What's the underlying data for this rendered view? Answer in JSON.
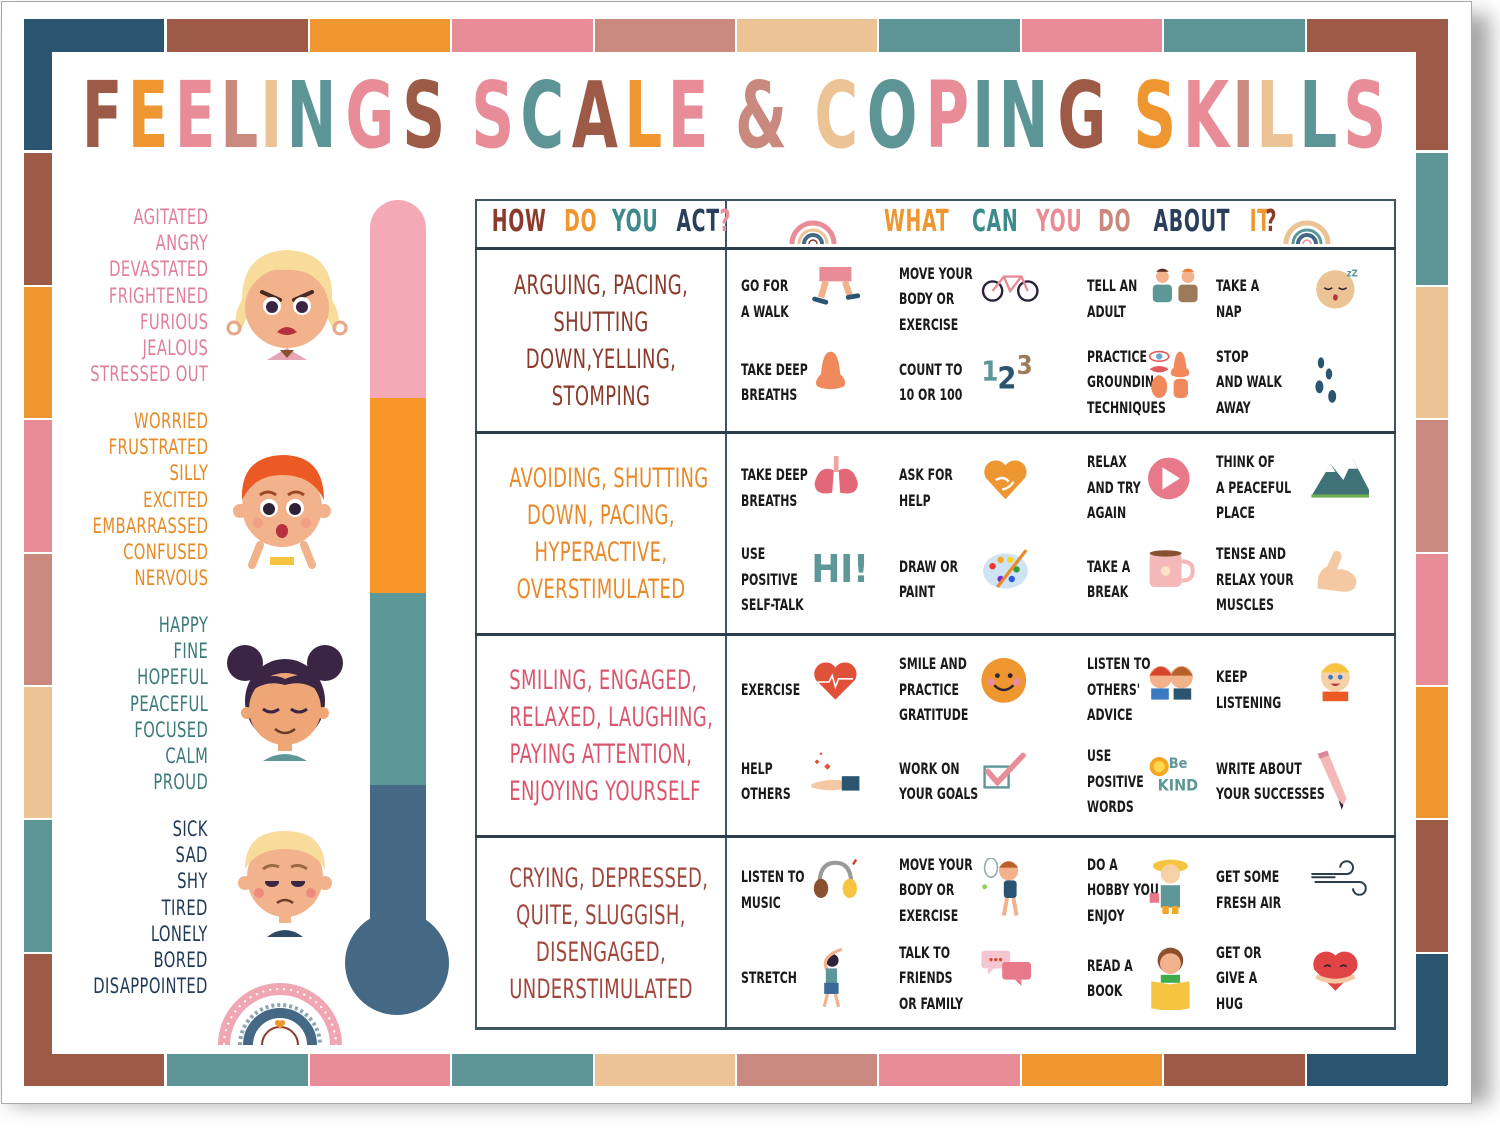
{
  "palette": {
    "navy": "#2a5470",
    "rust": "#9d5a47",
    "orange": "#ee9630",
    "pink": "#e88d98",
    "dusty_rose": "#c9897e",
    "peach": "#ecc394",
    "teal": "#5d9596",
    "thermo_pink": "#f3a9b6",
    "thermo_orange": "#f7972a",
    "thermo_teal": "#5e9797",
    "thermo_navy": "#456885"
  },
  "title": {
    "text": "FEELINGS SCALE & COPING SKILLS",
    "letters": [
      {
        "ch": "F",
        "color": "#9d5a47"
      },
      {
        "ch": "E",
        "color": "#ee9630"
      },
      {
        "ch": "E",
        "color": "#e88d98"
      },
      {
        "ch": "L",
        "color": "#c9897e"
      },
      {
        "ch": "I",
        "color": "#ecc394"
      },
      {
        "ch": "N",
        "color": "#5d9596"
      },
      {
        "ch": "G",
        "color": "#e88d98"
      },
      {
        "ch": "S",
        "color": "#9d5a47"
      },
      {
        "ch": " ",
        "color": "#fff"
      },
      {
        "ch": "S",
        "color": "#e88d98"
      },
      {
        "ch": "C",
        "color": "#5d9596"
      },
      {
        "ch": "A",
        "color": "#9d5a47"
      },
      {
        "ch": "L",
        "color": "#ee9630"
      },
      {
        "ch": "E",
        "color": "#e88d98"
      },
      {
        "ch": " ",
        "color": "#fff"
      },
      {
        "ch": "&",
        "color": "#c9897e"
      },
      {
        "ch": " ",
        "color": "#fff"
      },
      {
        "ch": "C",
        "color": "#ecc394"
      },
      {
        "ch": "O",
        "color": "#5d9596"
      },
      {
        "ch": "P",
        "color": "#e88d98"
      },
      {
        "ch": "I",
        "color": "#5d9596"
      },
      {
        "ch": "N",
        "color": "#5d9596"
      },
      {
        "ch": "G",
        "color": "#9d5a47"
      },
      {
        "ch": " ",
        "color": "#fff"
      },
      {
        "ch": "S",
        "color": "#ee9630"
      },
      {
        "ch": "K",
        "color": "#e88d98"
      },
      {
        "ch": "I",
        "color": "#c9897e"
      },
      {
        "ch": "L",
        "color": "#ecc394"
      },
      {
        "ch": "L",
        "color": "#5d9596"
      },
      {
        "ch": "S",
        "color": "#e88d98"
      }
    ]
  },
  "feelings_scale": [
    {
      "level": "high",
      "color": "#e07f98",
      "face": "angry-girl-face",
      "words": [
        "AGITATED",
        "ANGRY",
        "DEVASTATED",
        "FRIGHTENED",
        "FURIOUS",
        "JEALOUS",
        "STRESSED OUT"
      ]
    },
    {
      "level": "elevated",
      "color": "#e58a25",
      "face": "worried-boy-face",
      "words": [
        "WORRIED",
        "FRUSTRATED",
        "SILLY",
        "EXCITED",
        "EMBARRASSED",
        "CONFUSED",
        "NERVOUS"
      ]
    },
    {
      "level": "calm",
      "color": "#3b7a7a",
      "face": "calm-girl-face",
      "words": [
        "HAPPY",
        "FINE",
        "HOPEFUL",
        "PEACEFUL",
        "FOCUSED",
        "CALM",
        "PROUD"
      ]
    },
    {
      "level": "low",
      "color": "#203a57",
      "face": "sad-boy-face",
      "words": [
        "SICK",
        "SAD",
        "SHY",
        "TIRED",
        "LONELY",
        "BORED",
        "DISAPPOINTED"
      ]
    }
  ],
  "table": {
    "header_act": [
      {
        "w": "HOW",
        "color": "#8a3b2b"
      },
      {
        "w": "DO",
        "color": "#ee9630"
      },
      {
        "w": "YOU",
        "color": "#3e8a8a"
      },
      {
        "w": "ACT",
        "color": "#2a3f5c"
      },
      {
        "w": "?",
        "color": "#e88d98"
      }
    ],
    "header_do": [
      {
        "w": "WHAT",
        "color": "#ee9630"
      },
      {
        "w": "CAN",
        "color": "#3e8a8a"
      },
      {
        "w": "YOU",
        "color": "#e88d98"
      },
      {
        "w": "DO",
        "color": "#c9897e"
      },
      {
        "w": "ABOUT",
        "color": "#2a3f5c"
      },
      {
        "w": "IT",
        "color": "#ee9630"
      },
      {
        "w": "?",
        "color": "#8a3b2b"
      }
    ],
    "rows": [
      {
        "act_color": "#8a3b2b",
        "act_lines": [
          "ARGUING, PACING,",
          "SHUTTING",
          "DOWN,YELLING,",
          "STOMPING"
        ],
        "skills": [
          {
            "lines": [
              "GO FOR",
              "A WALK"
            ],
            "icon": "walking-legs-icon"
          },
          {
            "lines": [
              "MOVE YOUR",
              "BODY OR",
              "EXERCISE"
            ],
            "icon": "bicycle-icon"
          },
          {
            "lines": [
              "TELL AN",
              "ADULT"
            ],
            "icon": "kids-talking-icon"
          },
          {
            "lines": [
              "TAKE A",
              "NAP"
            ],
            "icon": "sleeping-face-icon"
          },
          {
            "lines": [
              "TAKE DEEP",
              "BREATHS"
            ],
            "icon": "nose-icon"
          },
          {
            "lines": [
              "COUNT TO",
              "10 OR 100"
            ],
            "icon": "numbers-123-icon"
          },
          {
            "lines": [
              "PRACTICE",
              "GROUNDING",
              "TECHNIQUES"
            ],
            "icon": "five-senses-icon"
          },
          {
            "lines": [
              "STOP",
              "AND WALK",
              "AWAY"
            ],
            "icon": "footprints-icon"
          }
        ]
      },
      {
        "act_color": "#e8892a",
        "act_lines": [
          "AVOIDING, SHUTTING",
          "DOWN, PACING,",
          "HYPERACTIVE,",
          "OVERSTIMULATED"
        ],
        "skills": [
          {
            "lines": [
              "TAKE DEEP",
              "BREATHS"
            ],
            "icon": "lungs-icon"
          },
          {
            "lines": [
              "ASK FOR",
              "HELP"
            ],
            "icon": "heart-hands-icon"
          },
          {
            "lines": [
              "RELAX",
              "AND TRY",
              "AGAIN"
            ],
            "icon": "play-button-icon"
          },
          {
            "lines": [
              "THINK OF",
              "A PEACEFUL",
              "PLACE"
            ],
            "icon": "mountains-icon"
          },
          {
            "lines": [
              "USE",
              "POSITIVE",
              "SELF-TALK"
            ],
            "icon": "hi-text-icon"
          },
          {
            "lines": [
              "DRAW OR",
              "PAINT"
            ],
            "icon": "paint-palette-icon"
          },
          {
            "lines": [
              "TAKE A",
              "BREAK"
            ],
            "icon": "mug-icon"
          },
          {
            "lines": [
              "TENSE AND",
              "RELAX YOUR",
              "MUSCLES"
            ],
            "icon": "flexed-arm-icon"
          }
        ]
      },
      {
        "act_color": "#d9566e",
        "act_lines": [
          "SMILING, ENGAGED,",
          "RELAXED, LAUGHING,",
          "PAYING ATTENTION,",
          "ENJOYING YOURSELF"
        ],
        "skills": [
          {
            "lines": [
              "EXERCISE"
            ],
            "icon": "heartbeat-heart-icon"
          },
          {
            "lines": [
              "SMILE AND",
              "PRACTICE",
              "GRATITUDE"
            ],
            "icon": "smiley-face-icon"
          },
          {
            "lines": [
              "LISTEN TO",
              "OTHERS'",
              "ADVICE"
            ],
            "icon": "two-kids-whisper-icon"
          },
          {
            "lines": [
              "KEEP",
              "LISTENING"
            ],
            "icon": "waving-kid-icon"
          },
          {
            "lines": [
              "HELP",
              "OTHERS"
            ],
            "icon": "hand-giving-hearts-icon"
          },
          {
            "lines": [
              "WORK ON",
              "YOUR GOALS"
            ],
            "icon": "checkbox-tick-icon"
          },
          {
            "lines": [
              "USE",
              "POSITIVE",
              "WORDS"
            ],
            "icon": "be-kind-sun-icon"
          },
          {
            "lines": [
              "WRITE ABOUT",
              "YOUR SUCCESSES"
            ],
            "icon": "pencil-icon"
          }
        ]
      },
      {
        "act_color": "#a0473d",
        "act_lines": [
          "CRYING, DEPRESSED,",
          "QUITE, SLUGGISH,",
          "DISENGAGED,",
          "UNDERSTIMULATED"
        ],
        "skills": [
          {
            "lines": [
              "LISTEN TO",
              "MUSIC"
            ],
            "icon": "headphones-icon"
          },
          {
            "lines": [
              "MOVE YOUR",
              "BODY OR",
              "EXERCISE"
            ],
            "icon": "tennis-girl-icon"
          },
          {
            "lines": [
              "DO A",
              "HOBBY YOU",
              "ENJOY"
            ],
            "icon": "gardener-kid-icon"
          },
          {
            "lines": [
              "GET SOME",
              "FRESH AIR"
            ],
            "icon": "wind-icon"
          },
          {
            "lines": [
              "STRETCH"
            ],
            "icon": "stretching-woman-icon"
          },
          {
            "lines": [
              "TALK TO",
              "FRIENDS",
              "OR FAMILY"
            ],
            "icon": "chat-bubbles-icon"
          },
          {
            "lines": [
              "READ A",
              "BOOK"
            ],
            "icon": "reading-kid-icon"
          },
          {
            "lines": [
              "GET OR",
              "GIVE A",
              "HUG"
            ],
            "icon": "hugging-heart-icon"
          }
        ]
      }
    ]
  }
}
